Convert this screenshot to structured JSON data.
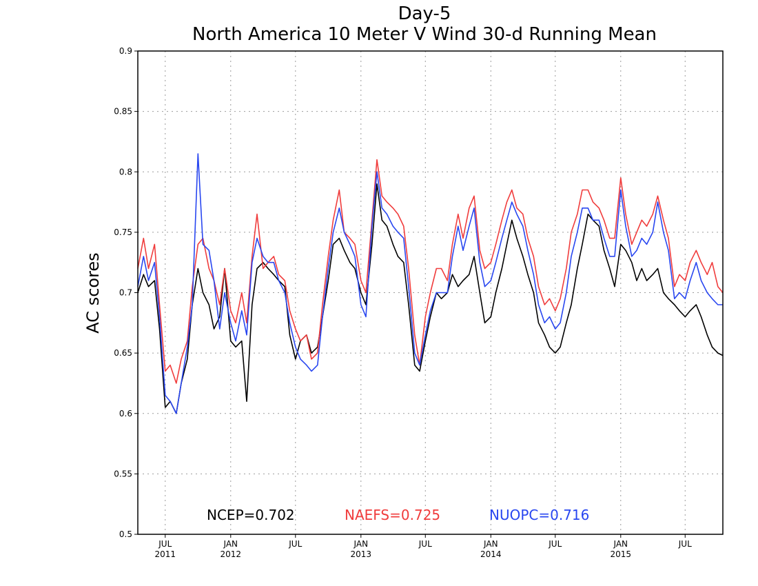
{
  "chart_data": {
    "type": "line",
    "title": "Day-5",
    "subtitle": "North America 10 Meter V Wind 30-d Running Mean",
    "xlabel": "",
    "ylabel": "AC scores",
    "ylim": [
      0.5,
      0.9
    ],
    "yticks": [
      0.5,
      0.55,
      0.6,
      0.65,
      0.7,
      0.75,
      0.8,
      0.85,
      0.9
    ],
    "ytick_labels": [
      "0.5",
      "0.55",
      "0.6",
      "0.65",
      "0.7",
      "0.75",
      "0.8",
      "0.85",
      "0.9"
    ],
    "xlim": [
      "2011-04-15",
      "2015-10-15"
    ],
    "xticks": [
      {
        "date": "2011-07-01",
        "label": "JUL",
        "year": "2011"
      },
      {
        "date": "2012-01-01",
        "label": "JAN",
        "year": "2012"
      },
      {
        "date": "2012-07-01",
        "label": "JUL",
        "year": ""
      },
      {
        "date": "2013-01-01",
        "label": "JAN",
        "year": "2013"
      },
      {
        "date": "2013-07-01",
        "label": "JUL",
        "year": ""
      },
      {
        "date": "2014-01-01",
        "label": "JAN",
        "year": "2014"
      },
      {
        "date": "2014-07-01",
        "label": "JUL",
        "year": ""
      },
      {
        "date": "2015-01-01",
        "label": "JAN",
        "year": "2015"
      },
      {
        "date": "2015-07-01",
        "label": "JUL",
        "year": ""
      }
    ],
    "grid": true,
    "legend": [
      {
        "label": "NCEP=0.702",
        "color": "#000000"
      },
      {
        "label": "NAEFS=0.725",
        "color": "#f03c3c"
      },
      {
        "label": "NUOPC=0.716",
        "color": "#2846f0"
      }
    ],
    "legend_placement": "bottom-inside",
    "series": [
      {
        "color": "#000000",
        "x": [
          "2011-04-15",
          "2011-05-01",
          "2011-05-15",
          "2011-06-01",
          "2011-06-15",
          "2011-07-01",
          "2011-07-15",
          "2011-08-01",
          "2011-08-15",
          "2011-09-01",
          "2011-09-15",
          "2011-10-01",
          "2011-10-15",
          "2011-11-01",
          "2011-11-15",
          "2011-12-01",
          "2011-12-15",
          "2012-01-01",
          "2012-01-15",
          "2012-02-01",
          "2012-02-15",
          "2012-03-01",
          "2012-03-15",
          "2012-04-01",
          "2012-04-15",
          "2012-05-01",
          "2012-05-15",
          "2012-06-01",
          "2012-06-15",
          "2012-07-01",
          "2012-07-15",
          "2012-08-01",
          "2012-08-15",
          "2012-09-01",
          "2012-09-15",
          "2012-10-01",
          "2012-10-15",
          "2012-11-01",
          "2012-11-15",
          "2012-12-01",
          "2012-12-15",
          "2013-01-01",
          "2013-01-15",
          "2013-02-01",
          "2013-02-15",
          "2013-03-01",
          "2013-03-15",
          "2013-04-01",
          "2013-04-15",
          "2013-05-01",
          "2013-05-15",
          "2013-06-01",
          "2013-06-15",
          "2013-07-01",
          "2013-07-15",
          "2013-08-01",
          "2013-08-15",
          "2013-09-01",
          "2013-09-15",
          "2013-10-01",
          "2013-10-15",
          "2013-11-01",
          "2013-11-15",
          "2013-12-01",
          "2013-12-15",
          "2014-01-01",
          "2014-01-15",
          "2014-02-01",
          "2014-02-15",
          "2014-03-01",
          "2014-03-15",
          "2014-04-01",
          "2014-04-15",
          "2014-05-01",
          "2014-05-15",
          "2014-06-01",
          "2014-06-15",
          "2014-07-01",
          "2014-07-15",
          "2014-08-01",
          "2014-08-15",
          "2014-09-01",
          "2014-09-15",
          "2014-10-01",
          "2014-10-15",
          "2014-11-01",
          "2014-11-15",
          "2014-12-01",
          "2014-12-15",
          "2015-01-01",
          "2015-01-15",
          "2015-02-01",
          "2015-02-15",
          "2015-03-01",
          "2015-03-15",
          "2015-04-01",
          "2015-04-15",
          "2015-05-01",
          "2015-05-15",
          "2015-06-01",
          "2015-06-15",
          "2015-07-01",
          "2015-07-15",
          "2015-08-01",
          "2015-08-15",
          "2015-09-01",
          "2015-09-15",
          "2015-10-01",
          "2015-10-15"
        ],
        "values": [
          0.7,
          0.715,
          0.705,
          0.71,
          0.67,
          0.605,
          0.61,
          0.6,
          0.625,
          0.645,
          0.69,
          0.72,
          0.7,
          0.69,
          0.67,
          0.68,
          0.72,
          0.66,
          0.655,
          0.66,
          0.61,
          0.69,
          0.72,
          0.725,
          0.72,
          0.715,
          0.71,
          0.705,
          0.665,
          0.645,
          0.66,
          0.665,
          0.65,
          0.655,
          0.68,
          0.71,
          0.74,
          0.745,
          0.735,
          0.725,
          0.72,
          0.7,
          0.69,
          0.74,
          0.79,
          0.76,
          0.755,
          0.74,
          0.73,
          0.725,
          0.69,
          0.64,
          0.635,
          0.66,
          0.68,
          0.7,
          0.695,
          0.7,
          0.715,
          0.705,
          0.71,
          0.715,
          0.73,
          0.7,
          0.675,
          0.68,
          0.7,
          0.72,
          0.74,
          0.76,
          0.745,
          0.73,
          0.715,
          0.7,
          0.675,
          0.665,
          0.655,
          0.65,
          0.655,
          0.675,
          0.69,
          0.72,
          0.74,
          0.765,
          0.76,
          0.755,
          0.735,
          0.72,
          0.705,
          0.74,
          0.735,
          0.725,
          0.71,
          0.72,
          0.71,
          0.715,
          0.72,
          0.7,
          0.695,
          0.69,
          0.685,
          0.68,
          0.685,
          0.69,
          0.68,
          0.665,
          0.655,
          0.65,
          0.648
        ]
      },
      {
        "color": "#f03c3c",
        "x": [
          "2011-04-15",
          "2011-05-01",
          "2011-05-15",
          "2011-06-01",
          "2011-06-15",
          "2011-07-01",
          "2011-07-15",
          "2011-08-01",
          "2011-08-15",
          "2011-09-01",
          "2011-09-15",
          "2011-10-01",
          "2011-10-15",
          "2011-11-01",
          "2011-11-15",
          "2011-12-01",
          "2011-12-15",
          "2012-01-01",
          "2012-01-15",
          "2012-02-01",
          "2012-02-15",
          "2012-03-01",
          "2012-03-15",
          "2012-04-01",
          "2012-04-15",
          "2012-05-01",
          "2012-05-15",
          "2012-06-01",
          "2012-06-15",
          "2012-07-01",
          "2012-07-15",
          "2012-08-01",
          "2012-08-15",
          "2012-09-01",
          "2012-09-15",
          "2012-10-01",
          "2012-10-15",
          "2012-11-01",
          "2012-11-15",
          "2012-12-01",
          "2012-12-15",
          "2013-01-01",
          "2013-01-15",
          "2013-02-01",
          "2013-02-15",
          "2013-03-01",
          "2013-03-15",
          "2013-04-01",
          "2013-04-15",
          "2013-05-01",
          "2013-05-15",
          "2013-06-01",
          "2013-06-15",
          "2013-07-01",
          "2013-07-15",
          "2013-08-01",
          "2013-08-15",
          "2013-09-01",
          "2013-09-15",
          "2013-10-01",
          "2013-10-15",
          "2013-11-01",
          "2013-11-15",
          "2013-12-01",
          "2013-12-15",
          "2014-01-01",
          "2014-01-15",
          "2014-02-01",
          "2014-02-15",
          "2014-03-01",
          "2014-03-15",
          "2014-04-01",
          "2014-04-15",
          "2014-05-01",
          "2014-05-15",
          "2014-06-01",
          "2014-06-15",
          "2014-07-01",
          "2014-07-15",
          "2014-08-01",
          "2014-08-15",
          "2014-09-01",
          "2014-09-15",
          "2014-10-01",
          "2014-10-15",
          "2014-11-01",
          "2014-11-15",
          "2014-12-01",
          "2014-12-15",
          "2015-01-01",
          "2015-01-15",
          "2015-02-01",
          "2015-02-15",
          "2015-03-01",
          "2015-03-15",
          "2015-04-01",
          "2015-04-15",
          "2015-05-01",
          "2015-05-15",
          "2015-06-01",
          "2015-06-15",
          "2015-07-01",
          "2015-07-15",
          "2015-08-01",
          "2015-08-15",
          "2015-09-01",
          "2015-09-15",
          "2015-10-01",
          "2015-10-15"
        ],
        "values": [
          0.72,
          0.745,
          0.72,
          0.74,
          0.69,
          0.635,
          0.64,
          0.625,
          0.645,
          0.66,
          0.705,
          0.74,
          0.745,
          0.72,
          0.71,
          0.69,
          0.72,
          0.685,
          0.675,
          0.7,
          0.675,
          0.73,
          0.765,
          0.72,
          0.725,
          0.73,
          0.715,
          0.71,
          0.685,
          0.67,
          0.66,
          0.665,
          0.645,
          0.65,
          0.69,
          0.73,
          0.76,
          0.785,
          0.75,
          0.745,
          0.74,
          0.71,
          0.7,
          0.76,
          0.81,
          0.78,
          0.775,
          0.77,
          0.765,
          0.755,
          0.72,
          0.665,
          0.64,
          0.68,
          0.7,
          0.72,
          0.72,
          0.71,
          0.74,
          0.765,
          0.745,
          0.77,
          0.78,
          0.735,
          0.72,
          0.725,
          0.74,
          0.76,
          0.775,
          0.785,
          0.77,
          0.765,
          0.745,
          0.73,
          0.705,
          0.69,
          0.695,
          0.685,
          0.695,
          0.72,
          0.75,
          0.765,
          0.785,
          0.785,
          0.775,
          0.77,
          0.76,
          0.745,
          0.745,
          0.795,
          0.765,
          0.74,
          0.75,
          0.76,
          0.755,
          0.765,
          0.78,
          0.76,
          0.745,
          0.705,
          0.715,
          0.71,
          0.725,
          0.735,
          0.725,
          0.715,
          0.725,
          0.705,
          0.7
        ]
      },
      {
        "color": "#2846f0",
        "x": [
          "2011-04-15",
          "2011-05-01",
          "2011-05-15",
          "2011-06-01",
          "2011-06-15",
          "2011-07-01",
          "2011-07-15",
          "2011-08-01",
          "2011-08-15",
          "2011-09-01",
          "2011-09-15",
          "2011-10-01",
          "2011-10-15",
          "2011-11-01",
          "2011-11-15",
          "2011-12-01",
          "2011-12-15",
          "2012-01-01",
          "2012-01-15",
          "2012-02-01",
          "2012-02-15",
          "2012-03-01",
          "2012-03-15",
          "2012-04-01",
          "2012-04-15",
          "2012-05-01",
          "2012-05-15",
          "2012-06-01",
          "2012-06-15",
          "2012-07-01",
          "2012-07-15",
          "2012-08-01",
          "2012-08-15",
          "2012-09-01",
          "2012-09-15",
          "2012-10-01",
          "2012-10-15",
          "2012-11-01",
          "2012-11-15",
          "2012-12-01",
          "2012-12-15",
          "2013-01-01",
          "2013-01-15",
          "2013-02-01",
          "2013-02-15",
          "2013-03-01",
          "2013-03-15",
          "2013-04-01",
          "2013-04-15",
          "2013-05-01",
          "2013-05-15",
          "2013-06-01",
          "2013-06-15",
          "2013-07-01",
          "2013-07-15",
          "2013-08-01",
          "2013-08-15",
          "2013-09-01",
          "2013-09-15",
          "2013-10-01",
          "2013-10-15",
          "2013-11-01",
          "2013-11-15",
          "2013-12-01",
          "2013-12-15",
          "2014-01-01",
          "2014-01-15",
          "2014-02-01",
          "2014-02-15",
          "2014-03-01",
          "2014-03-15",
          "2014-04-01",
          "2014-04-15",
          "2014-05-01",
          "2014-05-15",
          "2014-06-01",
          "2014-06-15",
          "2014-07-01",
          "2014-07-15",
          "2014-08-01",
          "2014-08-15",
          "2014-09-01",
          "2014-09-15",
          "2014-10-01",
          "2014-10-15",
          "2014-11-01",
          "2014-11-15",
          "2014-12-01",
          "2014-12-15",
          "2015-01-01",
          "2015-01-15",
          "2015-02-01",
          "2015-02-15",
          "2015-03-01",
          "2015-03-15",
          "2015-04-01",
          "2015-04-15",
          "2015-05-01",
          "2015-05-15",
          "2015-06-01",
          "2015-06-15",
          "2015-07-01",
          "2015-07-15",
          "2015-08-01",
          "2015-08-15",
          "2015-09-01",
          "2015-09-15",
          "2015-10-01",
          "2015-10-15"
        ],
        "values": [
          0.705,
          0.73,
          0.71,
          0.725,
          0.68,
          0.615,
          0.61,
          0.6,
          0.625,
          0.655,
          0.69,
          0.815,
          0.74,
          0.735,
          0.71,
          0.67,
          0.7,
          0.675,
          0.66,
          0.685,
          0.665,
          0.725,
          0.745,
          0.73,
          0.725,
          0.725,
          0.71,
          0.7,
          0.675,
          0.655,
          0.645,
          0.64,
          0.635,
          0.64,
          0.68,
          0.72,
          0.75,
          0.77,
          0.75,
          0.74,
          0.73,
          0.69,
          0.68,
          0.755,
          0.8,
          0.77,
          0.765,
          0.755,
          0.75,
          0.745,
          0.705,
          0.65,
          0.64,
          0.665,
          0.685,
          0.7,
          0.7,
          0.7,
          0.73,
          0.755,
          0.735,
          0.755,
          0.77,
          0.725,
          0.705,
          0.71,
          0.725,
          0.745,
          0.76,
          0.775,
          0.765,
          0.755,
          0.735,
          0.715,
          0.69,
          0.675,
          0.68,
          0.67,
          0.675,
          0.7,
          0.73,
          0.75,
          0.77,
          0.77,
          0.76,
          0.76,
          0.745,
          0.73,
          0.73,
          0.785,
          0.755,
          0.73,
          0.735,
          0.745,
          0.74,
          0.75,
          0.775,
          0.75,
          0.735,
          0.695,
          0.7,
          0.695,
          0.71,
          0.725,
          0.71,
          0.7,
          0.695,
          0.69,
          0.69
        ]
      }
    ]
  }
}
